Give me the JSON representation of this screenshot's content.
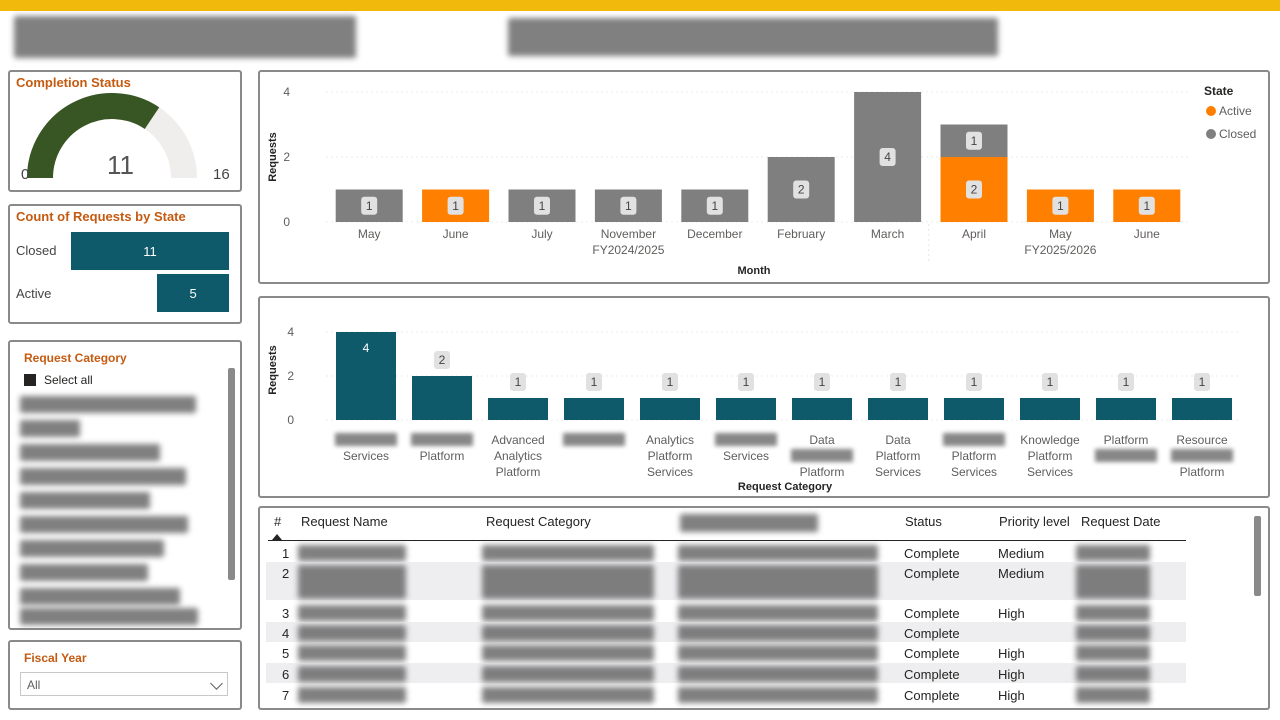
{
  "header": {
    "accent": "#f0b90b"
  },
  "completion_status": {
    "title": "Completion Status",
    "value": "11",
    "min": "0",
    "max": "16",
    "fraction": 0.6875,
    "fill_color": "#375623",
    "track_color": "#f0eeec"
  },
  "requests_by_state": {
    "title": "Count of Requests by State",
    "items": [
      {
        "label": "Closed",
        "value": 11
      },
      {
        "label": "Active",
        "value": 5
      }
    ],
    "bar_color": "#0e5a6b"
  },
  "request_category_slicer": {
    "title": "Request Category",
    "select_all": "Select all"
  },
  "fiscal_year": {
    "title": "Fiscal Year",
    "selected": "All"
  },
  "chart_data": [
    {
      "type": "bar",
      "stacked": true,
      "categories": [
        "May",
        "June",
        "July",
        "November",
        "December",
        "February",
        "March",
        "April",
        "May",
        "June"
      ],
      "groups": [
        {
          "label": "FY2024/2025",
          "span": [
            0,
            6
          ]
        },
        {
          "label": "FY2025/2026",
          "span": [
            7,
            9
          ]
        }
      ],
      "series": [
        {
          "name": "Active",
          "color": "#ff7f00",
          "values": [
            0,
            1,
            0,
            0,
            0,
            0,
            0,
            2,
            1,
            1
          ]
        },
        {
          "name": "Closed",
          "color": "#7f7f7f",
          "values": [
            1,
            0,
            1,
            1,
            1,
            2,
            4,
            1,
            0,
            0
          ]
        }
      ],
      "legend_title": "State",
      "legend_position": "top-right",
      "xlabel": "Month",
      "ylabel": "Requests",
      "yticks": [
        0,
        2,
        4
      ],
      "ylim": [
        0,
        4
      ]
    },
    {
      "type": "bar",
      "categories": [
        [
          "",
          "Services"
        ],
        [
          "",
          "Platform"
        ],
        [
          "Advanced",
          "Analytics",
          "Platform"
        ],
        [
          ""
        ],
        [
          "Analytics",
          "Platform",
          "Services"
        ],
        [
          "",
          "Services"
        ],
        [
          "Data",
          "",
          "Platform"
        ],
        [
          "Data",
          "Platform",
          "Services"
        ],
        [
          "",
          "Platform",
          "Services"
        ],
        [
          "Knowledge",
          "Platform",
          "Services"
        ],
        [
          "Platform",
          ""
        ],
        [
          "Resource",
          "",
          "Platform"
        ]
      ],
      "values": [
        4,
        2,
        1,
        1,
        1,
        1,
        1,
        1,
        1,
        1,
        1,
        1
      ],
      "bar_color": "#0e5a6b",
      "xlabel": "Request Category",
      "ylabel": "Requests",
      "yticks": [
        0,
        2,
        4
      ],
      "ylim": [
        0,
        4
      ]
    }
  ],
  "table": {
    "columns": [
      "#",
      "Request Name",
      "Request Category",
      "Status",
      "Priority level",
      "Request Date"
    ],
    "rows": [
      {
        "num": "1",
        "status": "Complete",
        "priority": "Medium"
      },
      {
        "num": "2",
        "status": "Complete",
        "priority": "Medium"
      },
      {
        "num": "3",
        "status": "Complete",
        "priority": "High"
      },
      {
        "num": "4",
        "status": "Complete",
        "priority": ""
      },
      {
        "num": "5",
        "status": "Complete",
        "priority": "High"
      },
      {
        "num": "6",
        "status": "Complete",
        "priority": "High"
      },
      {
        "num": "7",
        "status": "Complete",
        "priority": "High"
      }
    ]
  }
}
